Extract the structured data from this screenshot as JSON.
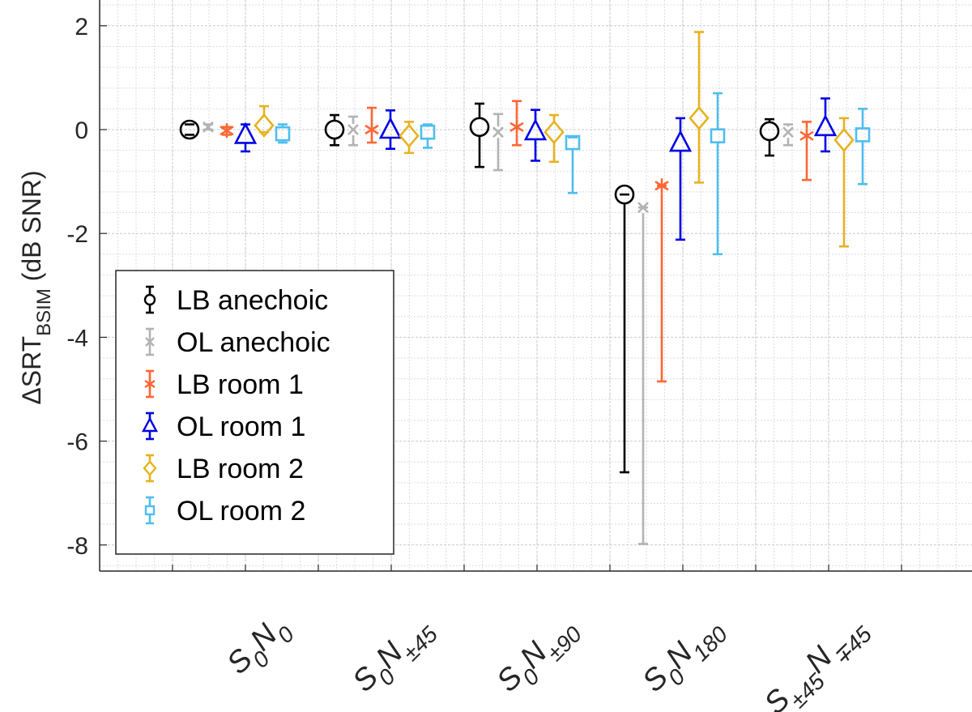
{
  "chart_data": {
    "type": "scatter",
    "title": "",
    "xlabel": "",
    "ylabel": {
      "prefix": "ΔSRT",
      "subscript": "BSIM",
      "suffix": " (dB SNR)"
    },
    "ylim": [
      -8.5,
      2.5
    ],
    "yticks": [
      2,
      0,
      -2,
      -4,
      -6,
      -8
    ],
    "ytick_labels": [
      "2",
      "0",
      "-2",
      "-4",
      "-6",
      "-8"
    ],
    "categories": [
      {
        "p1": "S",
        "s1": "0",
        "p2": "N",
        "s2": "0"
      },
      {
        "p1": "S",
        "s1": "0",
        "p2": "N",
        "s2": "±45"
      },
      {
        "p1": "S",
        "s1": "0",
        "p2": "N",
        "s2": "±90"
      },
      {
        "p1": "S",
        "s1": "0",
        "p2": "N",
        "s2": "180"
      },
      {
        "p1": "S",
        "s1": "±45",
        "p2": "N",
        "s2": "∓45"
      }
    ],
    "grid": "on",
    "legend_position": "bottom-left",
    "series": [
      {
        "name": "LB anechoic",
        "color": "#000000",
        "marker": "circle",
        "values": [
          0.0,
          0.0,
          0.05,
          -1.25,
          -0.03
        ],
        "err_low": [
          -0.1,
          -0.3,
          -0.72,
          -6.6,
          -0.5
        ],
        "err_high": [
          0.1,
          0.28,
          0.5,
          -1.25,
          0.2
        ]
      },
      {
        "name": "OL anechoic",
        "color": "#B3B3B3",
        "marker": "x",
        "values": [
          0.05,
          0.0,
          -0.05,
          -1.5,
          -0.05
        ],
        "err_low": [
          0.0,
          -0.3,
          -0.78,
          -7.98,
          -0.3
        ],
        "err_high": [
          0.1,
          0.25,
          0.3,
          -1.5,
          0.1
        ]
      },
      {
        "name": "LB room 1",
        "color": "#FF6633",
        "marker": "asterisk",
        "values": [
          -0.02,
          0.0,
          0.05,
          -1.08,
          -0.12
        ],
        "err_low": [
          -0.1,
          -0.25,
          -0.3,
          -4.85,
          -0.97
        ],
        "err_high": [
          0.05,
          0.42,
          0.55,
          -1.08,
          0.15
        ]
      },
      {
        "name": "OL room 1",
        "color": "#0000E6",
        "marker": "triangle",
        "values": [
          -0.1,
          0.0,
          -0.03,
          -0.25,
          0.05
        ],
        "err_low": [
          -0.42,
          -0.37,
          -0.6,
          -2.12,
          -0.42
        ],
        "err_high": [
          0.1,
          0.37,
          0.38,
          0.22,
          0.6
        ]
      },
      {
        "name": "LB room 2",
        "color": "#E6B21F",
        "marker": "diamond",
        "values": [
          0.08,
          -0.12,
          -0.05,
          0.22,
          -0.2
        ],
        "err_low": [
          -0.05,
          -0.45,
          -0.62,
          -1.02,
          -2.25
        ],
        "err_high": [
          0.45,
          0.15,
          0.28,
          1.88,
          0.22
        ]
      },
      {
        "name": "OL room 2",
        "color": "#4DBEEE",
        "marker": "square",
        "values": [
          -0.08,
          -0.05,
          -0.25,
          -0.12,
          -0.1
        ],
        "err_low": [
          -0.25,
          -0.35,
          -1.22,
          -2.4,
          -1.05
        ],
        "err_high": [
          0.1,
          0.1,
          -0.15,
          0.7,
          0.4
        ]
      }
    ]
  }
}
